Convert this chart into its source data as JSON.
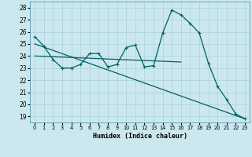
{
  "xlabel": "Humidex (Indice chaleur)",
  "bg_color": "#cce8ef",
  "grid_color": "#b0d4dc",
  "line_color": "#006060",
  "xlim": [
    -0.5,
    23.5
  ],
  "ylim": [
    18.5,
    28.5
  ],
  "yticks": [
    19,
    20,
    21,
    22,
    23,
    24,
    25,
    26,
    27,
    28
  ],
  "xticks": [
    0,
    1,
    2,
    3,
    4,
    5,
    6,
    7,
    8,
    9,
    10,
    11,
    12,
    13,
    14,
    15,
    16,
    17,
    18,
    19,
    20,
    21,
    22,
    23
  ],
  "curve1_x": [
    0,
    1,
    2,
    3,
    4,
    5,
    6,
    7,
    8,
    9,
    10,
    11,
    12,
    13,
    14,
    15,
    16,
    17,
    18,
    19,
    20,
    21,
    22,
    23
  ],
  "curve1_y": [
    25.6,
    24.8,
    23.7,
    23.0,
    23.0,
    23.3,
    24.2,
    24.2,
    23.1,
    23.3,
    24.7,
    24.9,
    23.1,
    23.2,
    25.9,
    27.8,
    27.4,
    26.7,
    25.9,
    23.4,
    21.5,
    20.4,
    19.2,
    18.8
  ],
  "curve2_x": [
    0,
    16
  ],
  "curve2_y": [
    24.0,
    23.5
  ],
  "curve3_x": [
    0,
    23
  ],
  "curve3_y": [
    25.0,
    18.8
  ],
  "marker": "+"
}
